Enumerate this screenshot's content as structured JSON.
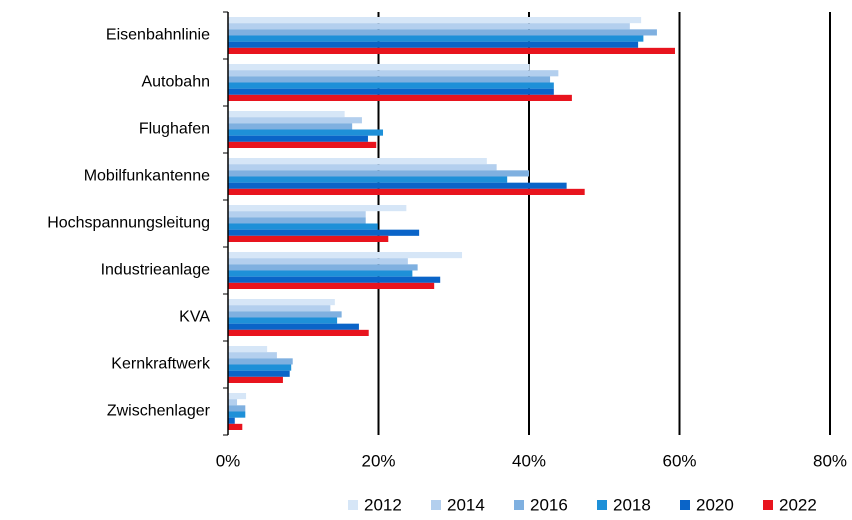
{
  "chart_data": {
    "type": "barh",
    "categories": [
      "Eisenbahnlinie",
      "Autobahn",
      "Flughafen",
      "Mobilfunkantenne",
      "Hochspannungsleitung",
      "Industrieanlage",
      "KVA",
      "Kernkraftwerk",
      "Zwischenlager"
    ],
    "series": [
      {
        "name": "2012",
        "color": "#d6e6f7",
        "values": [
          54.9,
          40.1,
          15.5,
          34.4,
          23.7,
          31.1,
          14.2,
          5.2,
          2.4
        ]
      },
      {
        "name": "2014",
        "color": "#b3cfee",
        "values": [
          53.4,
          43.9,
          17.8,
          35.7,
          18.3,
          23.9,
          13.6,
          6.5,
          1.2
        ]
      },
      {
        "name": "2016",
        "color": "#7fb0e0",
        "values": [
          57.0,
          42.8,
          16.5,
          40.0,
          18.3,
          25.2,
          15.1,
          8.6,
          2.3
        ]
      },
      {
        "name": "2018",
        "color": "#1e90d8",
        "values": [
          55.2,
          43.3,
          20.6,
          37.1,
          19.9,
          24.5,
          14.5,
          8.4,
          2.3
        ]
      },
      {
        "name": "2020",
        "color": "#0a64c8",
        "values": [
          54.5,
          43.3,
          18.6,
          45.0,
          25.4,
          28.2,
          17.4,
          8.2,
          0.9
        ]
      },
      {
        "name": "2022",
        "color": "#e8141e",
        "values": [
          59.4,
          45.7,
          19.7,
          47.4,
          21.3,
          27.4,
          18.7,
          7.3,
          1.9
        ]
      }
    ],
    "xlim": [
      0,
      80
    ],
    "xticks": [
      {
        "value": 0,
        "label": "0%"
      },
      {
        "value": 20,
        "label": "20%"
      },
      {
        "value": 40,
        "label": "40%"
      },
      {
        "value": 60,
        "label": "60%"
      },
      {
        "value": 80,
        "label": "80%"
      }
    ],
    "grid": true,
    "legend": "bottom"
  }
}
